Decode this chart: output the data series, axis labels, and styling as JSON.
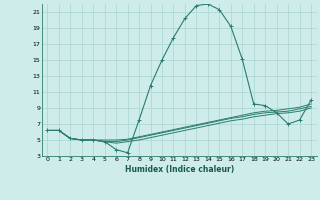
{
  "xlabel": "Humidex (Indice chaleur)",
  "bg_color": "#ceecea",
  "grid_color": "#b0d8d5",
  "line_color": "#2a7d6e",
  "xlim": [
    -0.5,
    23.5
  ],
  "ylim": [
    3,
    22
  ],
  "yticks": [
    3,
    5,
    7,
    9,
    11,
    13,
    15,
    17,
    19,
    21
  ],
  "xticks": [
    0,
    1,
    2,
    3,
    4,
    5,
    6,
    7,
    8,
    9,
    10,
    11,
    12,
    13,
    14,
    15,
    16,
    17,
    18,
    19,
    20,
    21,
    22,
    23
  ],
  "series_main": [
    6.2,
    6.2,
    5.2,
    5.0,
    5.0,
    4.8,
    3.8,
    3.4,
    7.5,
    11.8,
    15.0,
    17.8,
    20.2,
    21.8,
    22.0,
    21.3,
    19.2,
    15.1,
    9.5,
    9.3,
    8.4,
    7.0,
    7.5,
    10.0
  ],
  "series_flat": [
    [
      6.2,
      6.2,
      5.2,
      5.0,
      5.0,
      5.0,
      5.0,
      5.1,
      5.4,
      5.7,
      6.0,
      6.3,
      6.6,
      6.9,
      7.2,
      7.5,
      7.8,
      8.1,
      8.4,
      8.6,
      8.7,
      8.9,
      9.1,
      9.5
    ],
    [
      6.2,
      6.2,
      5.2,
      5.0,
      5.0,
      4.8,
      4.8,
      5.0,
      5.3,
      5.6,
      5.9,
      6.2,
      6.5,
      6.8,
      7.1,
      7.4,
      7.7,
      7.9,
      8.2,
      8.4,
      8.5,
      8.6,
      8.9,
      9.2
    ],
    [
      6.2,
      6.2,
      5.2,
      5.0,
      5.0,
      4.8,
      4.6,
      4.8,
      5.0,
      5.3,
      5.6,
      5.9,
      6.2,
      6.5,
      6.8,
      7.1,
      7.4,
      7.6,
      7.9,
      8.1,
      8.3,
      8.4,
      8.6,
      9.0
    ]
  ]
}
